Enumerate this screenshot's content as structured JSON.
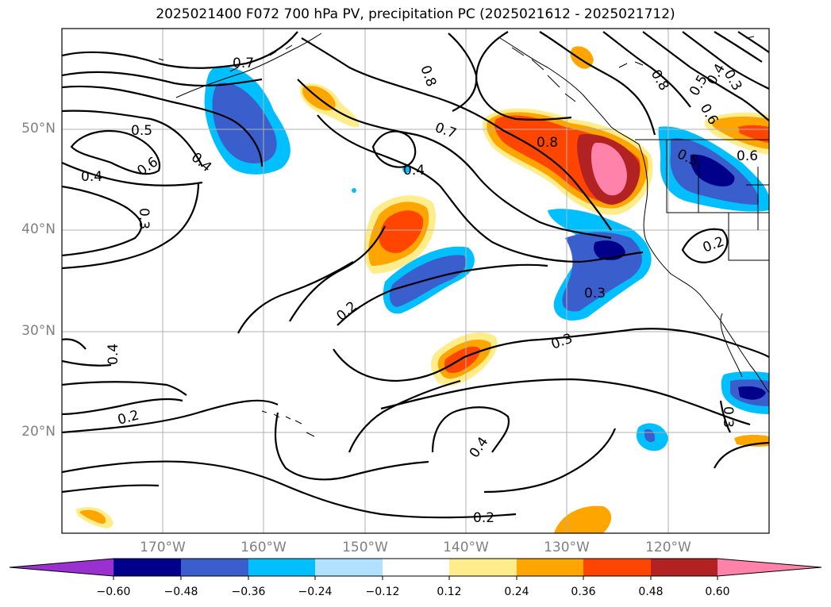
{
  "title": "2025021400 F072 700 hPa PV, precipitation PC (2025021612 - 2025021712)",
  "lat_labels": [
    "50°N",
    "40°N",
    "30°N",
    "20°N"
  ],
  "lon_labels": [
    "170°W",
    "160°W",
    "150°W",
    "140°W",
    "130°W",
    "120°W"
  ],
  "contour_labels": [
    "0.7",
    "0.8",
    "0.7",
    "0.8",
    "0.5",
    "0.6",
    "0.4",
    "0.4",
    "0.3",
    "0.4",
    "0.2",
    "0.3",
    "0.4",
    "0.2",
    "0.4",
    "0.2",
    "0.5",
    "0.6",
    "0.2",
    "0.3",
    "0.3",
    "0.8",
    "0.4",
    "0.5",
    "0.6",
    "0.3"
  ],
  "colorbar": {
    "ticks": [
      "−0.60",
      "−0.48",
      "−0.36",
      "−0.24",
      "−0.12",
      "0.12",
      "0.24",
      "0.36",
      "0.48",
      "0.60"
    ],
    "colors": [
      "#9b30d0",
      "#00008b",
      "#3a5fcd",
      "#00bfff",
      "#b0e2ff",
      "#ffffff",
      "#ffec8b",
      "#ffa500",
      "#ff4500",
      "#b22222",
      "#ff82ab"
    ]
  }
}
